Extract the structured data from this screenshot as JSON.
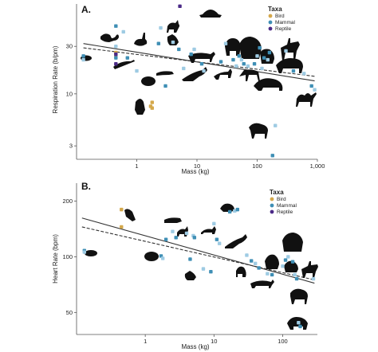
{
  "colors": {
    "Bird": "#d4a84b",
    "Mammal": "#3f8fb5",
    "Mammal_light": "#9ecbe3",
    "Reptile": "#4b2a87",
    "line": "#333333"
  },
  "chart_data": [
    {
      "panel": "A.",
      "type": "scatter",
      "xlabel": "Mass (kg)",
      "ylabel": "Respiration Rate (b/pm)",
      "xscale": "log",
      "yscale": "log",
      "xlim": [
        0.1,
        1000
      ],
      "ylim": [
        2.2,
        80
      ],
      "xticks": [
        {
          "v": 1,
          "label": "1"
        },
        {
          "v": 10,
          "label": "10"
        },
        {
          "v": 100,
          "label": "100"
        },
        {
          "v": 1000,
          "label": "1,000"
        }
      ],
      "yticks": [
        {
          "v": 3,
          "label": "3"
        },
        {
          "v": 10,
          "label": "10"
        },
        {
          "v": 30,
          "label": "30"
        }
      ],
      "legend": {
        "title": "Taxa",
        "position": "top-right",
        "entries": [
          "Bird",
          "Mammal",
          "Reptile"
        ]
      },
      "series": [
        {
          "name": "Bird",
          "points": [
            [
              0.45,
              26
            ],
            [
              0.45,
              24
            ],
            [
              1.8,
              8.2
            ],
            [
              1.8,
              7.2
            ],
            [
              1.7,
              7.5
            ]
          ]
        },
        {
          "name": "Mammal",
          "points": [
            [
              0.13,
              24
            ],
            [
              0.13,
              22
            ],
            [
              0.45,
              48
            ],
            [
              0.45,
              30
            ],
            [
              0.45,
              23
            ],
            [
              0.6,
              42
            ],
            [
              0.7,
              23
            ],
            [
              1.0,
              17
            ],
            [
              2.3,
              32
            ],
            [
              2.5,
              46
            ],
            [
              3.0,
              12
            ],
            [
              4.0,
              33
            ],
            [
              5.0,
              28
            ],
            [
              6.0,
              18
            ],
            [
              8.0,
              25
            ],
            [
              9.0,
              28
            ],
            [
              12.0,
              20
            ],
            [
              13.0,
              17
            ],
            [
              25.0,
              21
            ],
            [
              30.0,
              32
            ],
            [
              40.0,
              22
            ],
            [
              45.0,
              19
            ],
            [
              50.0,
              24
            ],
            [
              55.0,
              22
            ],
            [
              60.0,
              20
            ],
            [
              70.0,
              19
            ],
            [
              90.0,
              20
            ],
            [
              100.0,
              24
            ],
            [
              110.0,
              29
            ],
            [
              120.0,
              18
            ],
            [
              130.0,
              23
            ],
            [
              150.0,
              22
            ],
            [
              160.0,
              26
            ],
            [
              200.0,
              4.8
            ],
            [
              180.0,
              2.4
            ],
            [
              300.0,
              27
            ],
            [
              400.0,
              17
            ],
            [
              600.0,
              16
            ],
            [
              800.0,
              12
            ],
            [
              900.0,
              11
            ]
          ]
        },
        {
          "name": "Reptile",
          "points": [
            [
              0.45,
              25
            ],
            [
              0.45,
              20
            ],
            [
              5.2,
              76
            ]
          ]
        }
      ],
      "trend_lines": [
        {
          "style": "solid",
          "from": [
            0.13,
            32
          ],
          "to": [
            900,
            13.5
          ]
        },
        {
          "style": "dashed",
          "from": [
            0.13,
            29
          ],
          "to": [
            900,
            15
          ]
        }
      ]
    },
    {
      "panel": "B.",
      "type": "scatter",
      "xlabel": "Mass (kg)",
      "ylabel": "Heart Rate (bpm)",
      "xscale": "log",
      "yscale": "log",
      "xlim": [
        0.1,
        320
      ],
      "ylim": [
        38,
        250
      ],
      "xticks": [
        {
          "v": 1,
          "label": "1"
        },
        {
          "v": 10,
          "label": "10"
        },
        {
          "v": 100,
          "label": "100"
        }
      ],
      "yticks": [
        {
          "v": 50,
          "label": "50"
        },
        {
          "v": 100,
          "label": "100"
        },
        {
          "v": 200,
          "label": "200"
        }
      ],
      "legend": {
        "title": "Taxa",
        "position": "top-right",
        "entries": [
          "Bird",
          "Mammal",
          "Reptile"
        ]
      },
      "series": [
        {
          "name": "Bird",
          "points": [
            [
              0.45,
              180
            ],
            [
              0.45,
              145
            ]
          ]
        },
        {
          "name": "Mammal",
          "points": [
            [
              0.13,
              108
            ],
            [
              0.13,
              106
            ],
            [
              1.7,
              101
            ],
            [
              1.8,
              98
            ],
            [
              2.0,
              124
            ],
            [
              2.5,
              137
            ],
            [
              2.8,
              127
            ],
            [
              4.0,
              134
            ],
            [
              4.5,
              97
            ],
            [
              5.0,
              130
            ],
            [
              5.2,
              127
            ],
            [
              7.0,
              86
            ],
            [
              9.0,
              83
            ],
            [
              10.0,
              151
            ],
            [
              11.0,
              124
            ],
            [
              12.0,
              118
            ],
            [
              17.0,
              175
            ],
            [
              20.0,
              177
            ],
            [
              22.0,
              180
            ],
            [
              30.0,
              102
            ],
            [
              35.0,
              95
            ],
            [
              40.0,
              92
            ],
            [
              45.0,
              87
            ],
            [
              60.0,
              81
            ],
            [
              70.0,
              80
            ],
            [
              100.0,
              89
            ],
            [
              110.0,
              96
            ],
            [
              120.0,
              100
            ],
            [
              140.0,
              94
            ],
            [
              150.0,
              80
            ],
            [
              160.0,
              76
            ],
            [
              170.0,
              44
            ],
            [
              180.0,
              42
            ],
            [
              280.0,
              76
            ]
          ]
        },
        {
          "name": "Reptile",
          "points": []
        }
      ],
      "trend_lines": [
        {
          "style": "solid",
          "from": [
            0.12,
            162
          ],
          "to": [
            290,
            72
          ]
        },
        {
          "style": "dashed",
          "from": [
            0.12,
            145
          ],
          "to": [
            290,
            75
          ]
        }
      ]
    }
  ]
}
